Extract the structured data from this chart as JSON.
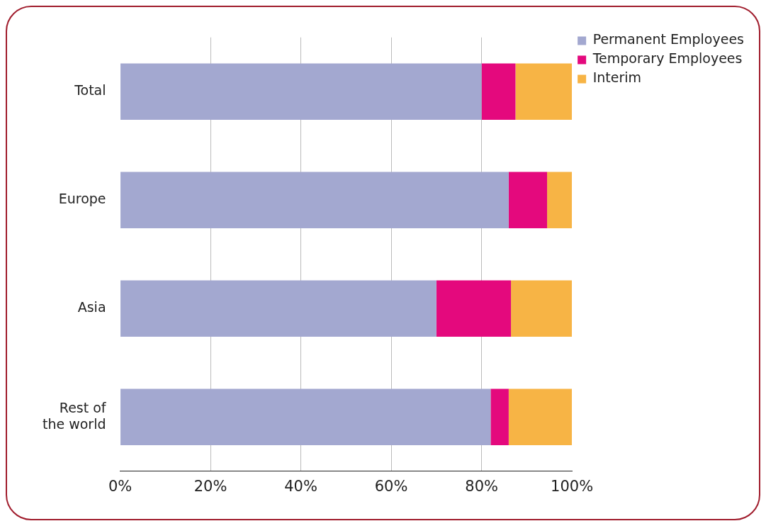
{
  "chart_data": {
    "type": "bar",
    "orientation": "horizontal",
    "stacked": true,
    "categories": [
      "Total",
      "Europe",
      "Asia",
      "Rest of\nthe world"
    ],
    "series": [
      {
        "name": "Permanent Employees",
        "color": "#a3a8d0",
        "values": [
          80,
          86,
          70,
          82
        ]
      },
      {
        "name": "Temporary Employees",
        "color": "#e4097d",
        "values": [
          7.5,
          8.5,
          16.5,
          4
        ]
      },
      {
        "name": "Interim",
        "color": "#f7b445",
        "values": [
          12.5,
          5.5,
          13.5,
          14
        ]
      }
    ],
    "xlim": [
      0,
      100
    ],
    "xticks": [
      {
        "value": 0,
        "label": "0%"
      },
      {
        "value": 20,
        "label": "20%"
      },
      {
        "value": 40,
        "label": "40%"
      },
      {
        "value": 60,
        "label": "60%"
      },
      {
        "value": 80,
        "label": "80%"
      },
      {
        "value": 100,
        "label": "100%"
      }
    ],
    "grid": "x",
    "legend": "top right"
  }
}
